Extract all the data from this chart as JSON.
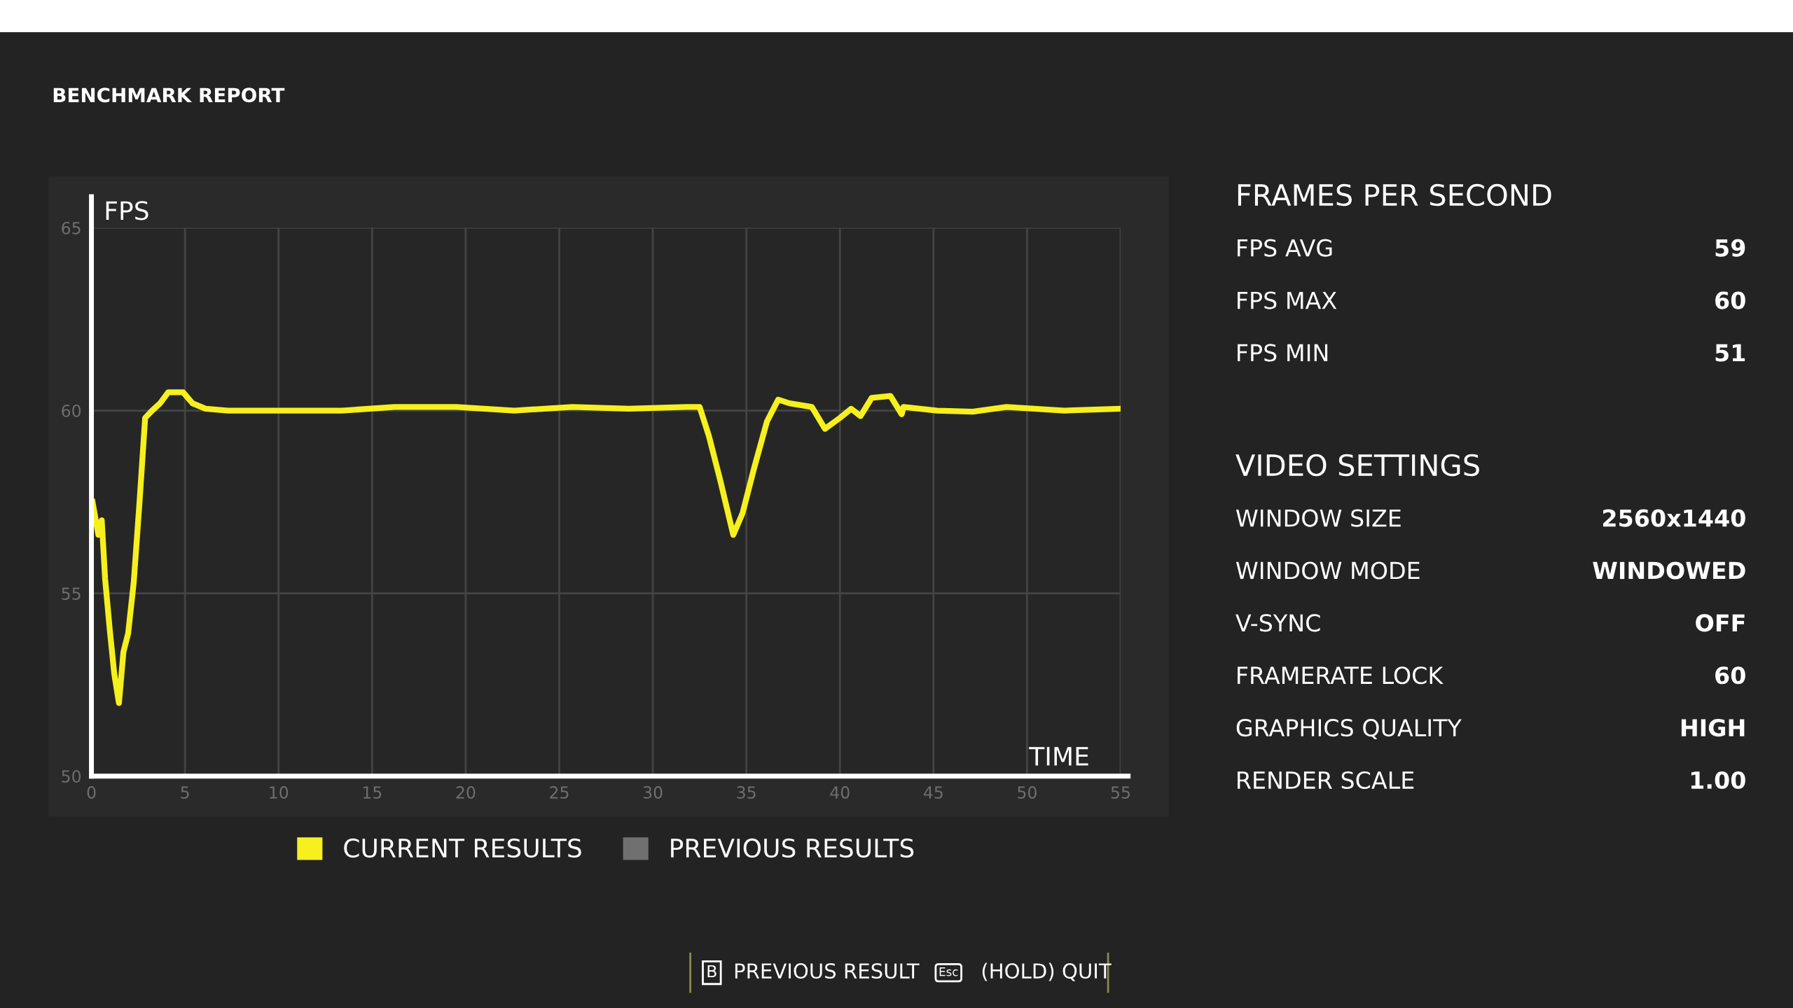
{
  "chart_data": [
    {
      "type": "line",
      "title": "BENCHMARK REPORT",
      "ylabel": "FPS",
      "xlabel": "TIME",
      "xlim": [
        0,
        55
      ],
      "ylim": [
        50,
        65
      ],
      "xticks": [
        0,
        5,
        10,
        15,
        20,
        25,
        30,
        35,
        40,
        45,
        50,
        55
      ],
      "yticks": [
        50,
        55,
        60,
        65
      ],
      "grid": true,
      "legend": "bottom",
      "marker": "none",
      "line_style": "solid",
      "series": [
        {
          "name": "CURRENT RESULTS",
          "color": "#f5f01e",
          "x": [
            0.06,
            0.37,
            0.55,
            0.73,
            0.98,
            1.22,
            1.47,
            1.71,
            1.96,
            2.26,
            2.57,
            2.87,
            3.24,
            3.67,
            4.1,
            4.9,
            5.4,
            6.1,
            7.3,
            10.4,
            13.4,
            16.2,
            19.5,
            22.6,
            25.7,
            28.7,
            31.8,
            32.5,
            33.0,
            33.6,
            34.3,
            34.8,
            35.4,
            36.1,
            36.7,
            37.3,
            38.5,
            39.2,
            40.0,
            40.6,
            41.1,
            41.7,
            42.7,
            43.3,
            43.4,
            45.2,
            47.1,
            48.9,
            52.0,
            55.0
          ],
          "values": [
            57.5,
            56.6,
            57.0,
            55.4,
            54.0,
            52.8,
            52.0,
            53.4,
            53.9,
            55.3,
            57.5,
            59.8,
            60.0,
            60.2,
            60.5,
            60.5,
            60.2,
            60.05,
            60.0,
            60.0,
            60.0,
            60.1,
            60.1,
            60.0,
            60.1,
            60.05,
            60.1,
            60.1,
            59.3,
            58.1,
            56.6,
            57.2,
            58.4,
            59.7,
            60.3,
            60.2,
            60.1,
            59.5,
            59.8,
            60.05,
            59.85,
            60.35,
            60.4,
            59.9,
            60.1,
            60.0,
            59.97,
            60.1,
            60.0,
            60.05
          ]
        },
        {
          "name": "PREVIOUS RESULTS",
          "color": "#707070"
        }
      ]
    },
    {
      "type": "other",
      "title": "FRAMES PER SECOND",
      "annotations": [
        "FPS AVG",
        "59",
        "FPS MAX",
        "60",
        "FPS MIN",
        "51"
      ]
    },
    {
      "type": "other",
      "title": "VIDEO SETTINGS",
      "annotations": [
        "WINDOW SIZE",
        "2560x1440",
        "WINDOW MODE",
        "WINDOWED",
        "V-SYNC",
        "OFF",
        "FRAMERATE LOCK",
        "60",
        "GRAPHICS QUALITY",
        "HIGH",
        "RENDER SCALE",
        "1.00"
      ]
    },
    {
      "type": "other",
      "annotations": [
        "B",
        "PREVIOUS RESULT",
        "Esc",
        "(HOLD) QUIT"
      ]
    }
  ]
}
